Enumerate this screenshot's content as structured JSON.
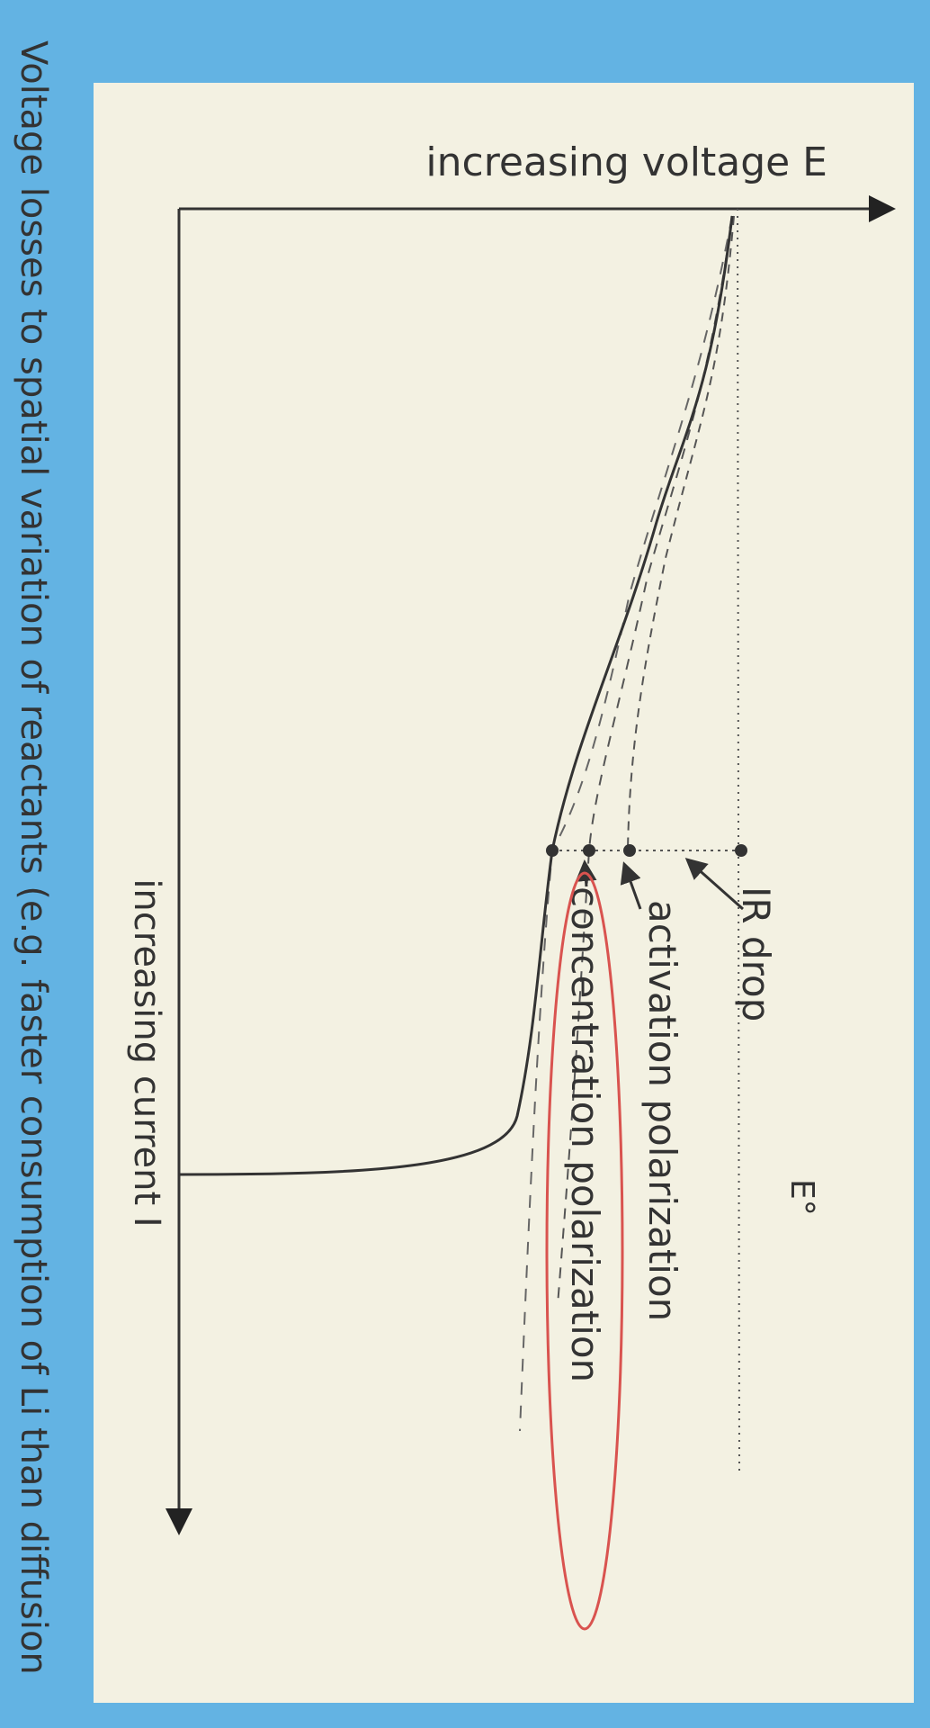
{
  "diagram": {
    "voltage_axis_label": "increasing voltage E",
    "current_axis_label": "increasing current I",
    "reference_label": "E°",
    "losses": [
      "IR drop",
      "activation polarization",
      "concentration polarization"
    ],
    "caption": "Voltage losses to spatial variation of reactants (e.g. faster consumption of Li than diffusion"
  }
}
